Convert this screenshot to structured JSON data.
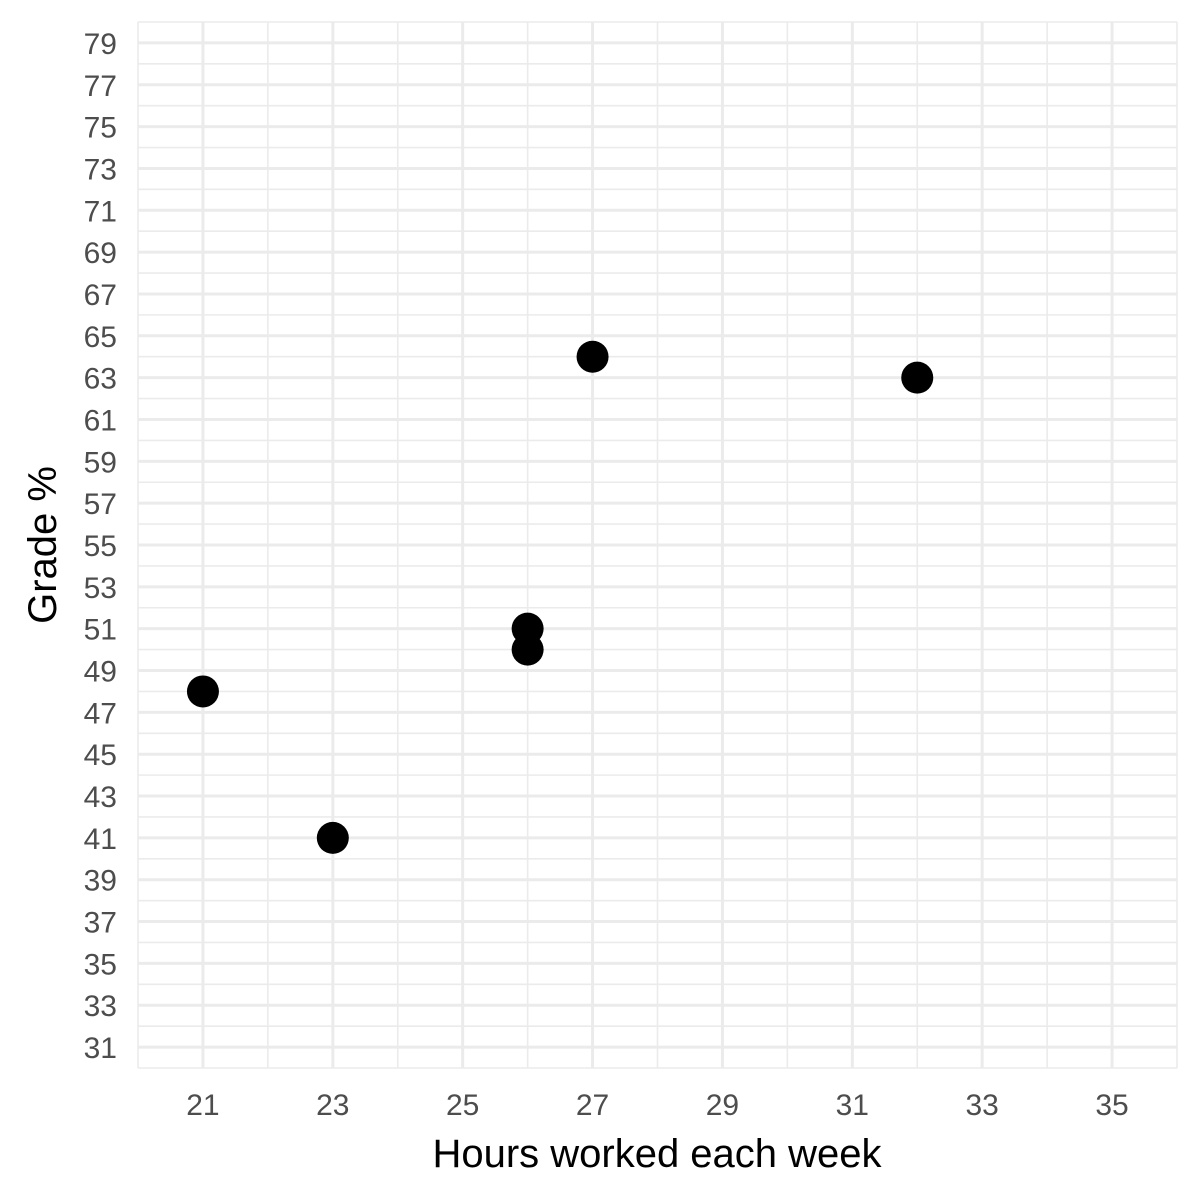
{
  "chart_data": {
    "type": "scatter",
    "title": "",
    "xlabel": "Hours worked each week",
    "ylabel": "Grade %",
    "xlim": [
      20,
      36
    ],
    "ylim": [
      30,
      80
    ],
    "x_ticks": [
      21,
      23,
      25,
      27,
      29,
      31,
      33,
      35
    ],
    "y_ticks": [
      31,
      33,
      35,
      37,
      39,
      41,
      43,
      45,
      47,
      49,
      51,
      53,
      55,
      57,
      59,
      61,
      63,
      65,
      67,
      69,
      71,
      73,
      75,
      77,
      79
    ],
    "grid": true,
    "legend": "none",
    "points": [
      {
        "x": 21,
        "y": 48
      },
      {
        "x": 23,
        "y": 41
      },
      {
        "x": 26,
        "y": 51
      },
      {
        "x": 26,
        "y": 50
      },
      {
        "x": 27,
        "y": 64
      },
      {
        "x": 32,
        "y": 63
      }
    ],
    "colors": {
      "point": "#000000",
      "grid": "#ebebeb",
      "tick_text": "#4d4d4d",
      "axis_title": "#000000"
    }
  }
}
